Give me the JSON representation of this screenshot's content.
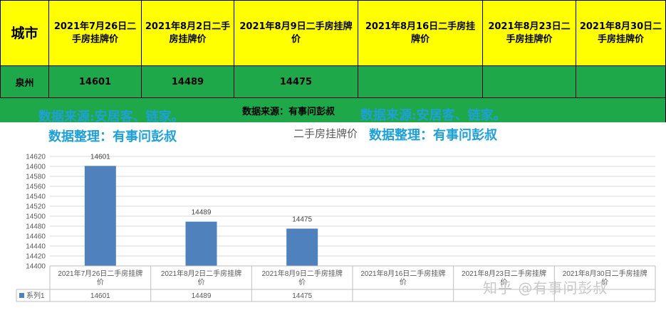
{
  "table": {
    "city_header": "城市",
    "date_headers": [
      "2021年7月26日二手房挂牌价",
      "2021年8月2日二手房挂牌价",
      "2021年8月9日二手房挂牌价",
      "2021年8月16日二手房挂牌价",
      "2021年8月23日二手房挂牌价",
      "2021年8月30日二手房挂牌价"
    ],
    "city": "泉州",
    "values": [
      "14601",
      "14489",
      "14475",
      "",
      "",
      ""
    ]
  },
  "source_note": "数据来源：有事问彭叔",
  "watermarks": {
    "source": "数据来源:安居客、链家。",
    "organizer": "数据整理：有事问彭叔"
  },
  "zhihu_watermark": "知乎 @有事问彭叔",
  "chart_data": {
    "type": "bar",
    "title": "二手房挂牌价",
    "categories": [
      "2021年7月26日二手房挂牌价",
      "2021年8月2日二手房挂牌价",
      "2021年8月9日二手房挂牌价",
      "2021年8月16日二手房挂牌价",
      "2021年8月23日二手房挂牌价",
      "2021年8月30日二手房挂牌价"
    ],
    "series": [
      {
        "name": "系列1",
        "values": [
          14601,
          14489,
          14475,
          null,
          null,
          null
        ]
      }
    ],
    "ylim": [
      14400,
      14620
    ],
    "ytick_step": 20,
    "grid": true,
    "data_table": true,
    "bar_color": "#4f81bd"
  }
}
